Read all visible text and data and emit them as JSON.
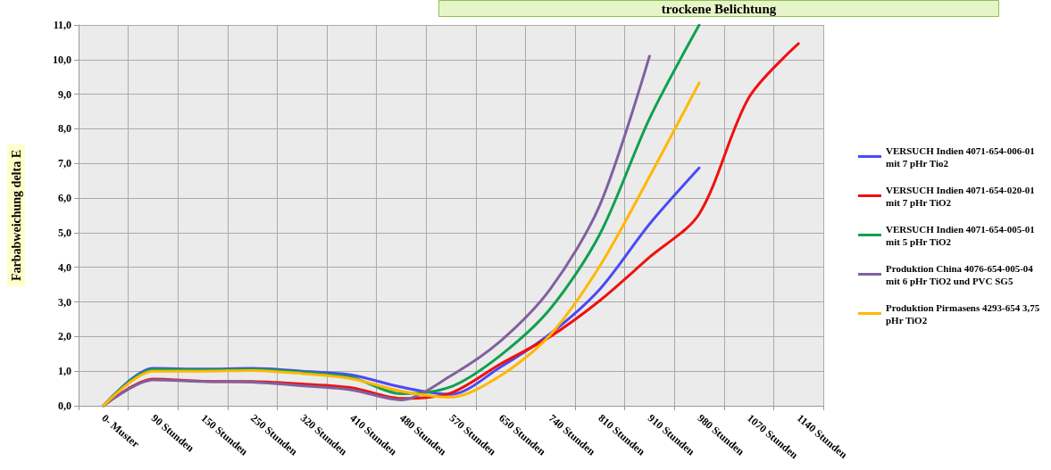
{
  "chart_data": {
    "type": "line",
    "title": "trockene Belichtung",
    "ylabel": "Farbabweichung delta E",
    "categories": [
      "0- Muster",
      "90 Stunden",
      "150 Stunden",
      "250 Stunden",
      "320 Stunden",
      "410 Stunden",
      "480 Stunden",
      "570 Stunden",
      "650 Stunden",
      "740 Stunden",
      "810 Stunden",
      "910 Stunden",
      "980 Stunden",
      "1070 Stunden",
      "1140 Stunden"
    ],
    "series": [
      {
        "name": "VERSUCH Indien 4071-654-006-01 mit 7 pHr Tio2",
        "color": "#4a4af5",
        "values": [
          0,
          1.08,
          1.06,
          1.08,
          1.0,
          0.89,
          0.54,
          0.33,
          1.12,
          2.08,
          3.37,
          5.25,
          6.87,
          null,
          null
        ]
      },
      {
        "name": "VERSUCH Indien 4071-654-020-01 mit 7 pHr TiO2",
        "color": "#f01010",
        "values": [
          0,
          0.77,
          0.71,
          0.7,
          0.63,
          0.52,
          0.21,
          0.37,
          1.21,
          2.0,
          3.04,
          4.29,
          5.54,
          8.9,
          10.46
        ]
      },
      {
        "name": "VERSUCH Indien 4071-654-005-01 mit 5 pHr TiO2",
        "color": "#10a050",
        "values": [
          0,
          1.05,
          1.04,
          1.05,
          0.97,
          0.82,
          0.35,
          0.55,
          1.46,
          2.8,
          4.96,
          8.3,
          11.0,
          null,
          null
        ]
      },
      {
        "name": "Produktion China 4076-654-005-04 mit 6 pHr TiO2 und PVC SG5",
        "color": "#8060a0",
        "values": [
          0,
          0.75,
          0.7,
          0.68,
          0.58,
          0.46,
          0.17,
          0.87,
          1.87,
          3.37,
          5.8,
          10.1,
          null,
          null,
          null
        ]
      },
      {
        "name": "Produktion Pirmasens 4293-654 3,75 pHr TiO2",
        "color": "#ffb800",
        "values": [
          0,
          1.0,
          1.0,
          1.02,
          0.93,
          0.78,
          0.42,
          0.25,
          0.87,
          2.05,
          4.04,
          6.62,
          9.33,
          null,
          null
        ]
      }
    ],
    "ylim": [
      0,
      11
    ],
    "yticks": [
      {
        "value": 0,
        "label": "0,0"
      },
      {
        "value": 1,
        "label": "1,0"
      },
      {
        "value": 2,
        "label": "2,0"
      },
      {
        "value": 3,
        "label": "3,0"
      },
      {
        "value": 4,
        "label": "4,0"
      },
      {
        "value": 5,
        "label": "5,0"
      },
      {
        "value": 6,
        "label": "6,0"
      },
      {
        "value": 7,
        "label": "7,0"
      },
      {
        "value": 8,
        "label": "8,0"
      },
      {
        "value": 9,
        "label": "9,0"
      },
      {
        "value": 10,
        "label": "10,0"
      },
      {
        "value": 11,
        "label": "11,0"
      }
    ],
    "grid": true,
    "legend": "right",
    "marker": "none",
    "line_style": "solid"
  }
}
